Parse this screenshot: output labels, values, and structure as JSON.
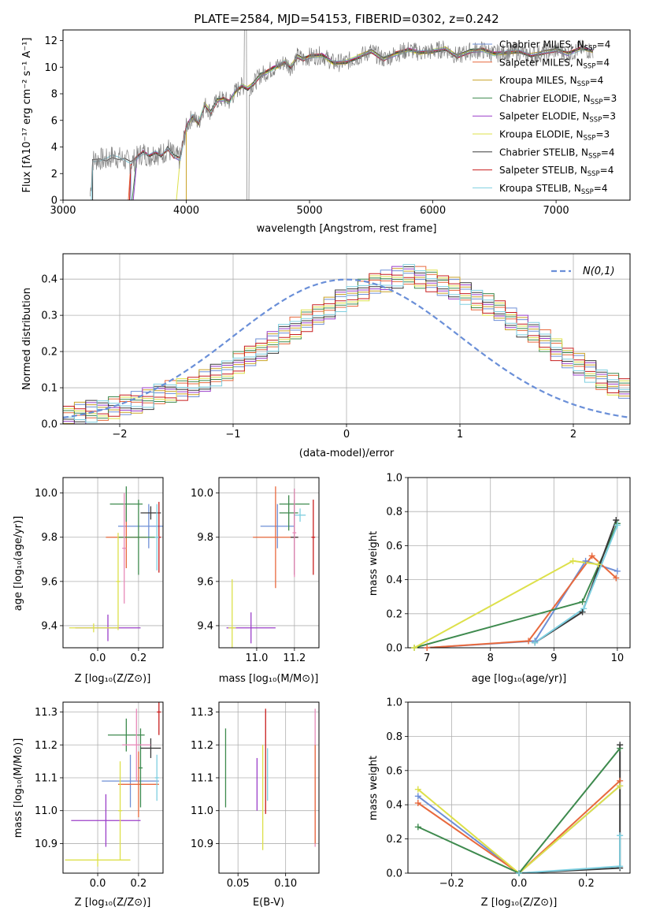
{
  "chart_data": [
    {
      "id": "spectrum",
      "type": "line",
      "title": "PLATE=2584, MJD=54153, FIBERID=0302, z=0.242",
      "xlabel": "wavelength [Angstrom, rest frame]",
      "ylabel": "Flux [fλ10⁻¹⁷ erg cm⁻² s⁻¹ A⁻¹]",
      "xlim": [
        3000,
        7600
      ],
      "ylim": [
        0,
        12.8
      ],
      "xticks": [
        "3000",
        "4000",
        "5000",
        "6000",
        "7000"
      ],
      "yticks": [
        "0",
        "2",
        "4",
        "6",
        "8",
        "10",
        "12"
      ],
      "grid": false,
      "legend_position": "top-right",
      "data_spectrum": {
        "name": "data",
        "color": "#808080",
        "x": [
          3220,
          3240,
          3300,
          3350,
          3400,
          3450,
          3500,
          3550,
          3600,
          3650,
          3700,
          3750,
          3800,
          3850,
          3900,
          3950,
          4000,
          4050,
          4100,
          4150,
          4200,
          4250,
          4300,
          4350,
          4400,
          4450,
          4500,
          4550,
          4600,
          4650,
          4700,
          4750,
          4800,
          4850,
          4900,
          4950,
          5000,
          5100,
          5200,
          5300,
          5400,
          5500,
          5600,
          5700,
          5800,
          5900,
          6000,
          6100,
          6200,
          6300,
          6400,
          6500,
          6600,
          6700,
          6800,
          6900,
          7000,
          7100,
          7200,
          7300
        ],
        "y": [
          0.3,
          3.0,
          3.1,
          3.0,
          3.3,
          3.2,
          3.0,
          2.8,
          3.2,
          3.6,
          3.3,
          3.6,
          3.4,
          3.9,
          3.3,
          3.1,
          5.5,
          6.3,
          5.8,
          7.2,
          6.6,
          7.5,
          7.6,
          7.4,
          8.2,
          8.6,
          8.4,
          8.8,
          9.4,
          9.6,
          9.9,
          10.1,
          10.4,
          10.0,
          10.8,
          10.6,
          10.8,
          10.9,
          10.3,
          10.4,
          10.8,
          11.2,
          10.6,
          11.0,
          11.3,
          11.1,
          11.2,
          11.4,
          10.8,
          11.2,
          11.3,
          11.0,
          11.1,
          11.2,
          10.9,
          11.1,
          11.3,
          11.0,
          11.4,
          11.2
        ]
      },
      "series": [
        {
          "name": "Chabrier MILES, N_SSP=4",
          "label_main": "Chabrier MILES, N",
          "label_sub": "SSP",
          "label_tail": "=4",
          "color": "#6e8fd6"
        },
        {
          "name": "Salpeter MILES, N_SSP=4",
          "label_main": "Salpeter MILES, N",
          "label_sub": "SSP",
          "label_tail": "=4",
          "color": "#e8693d"
        },
        {
          "name": "Kroupa MILES, N_SSP=4",
          "label_main": "Kroupa MILES, N",
          "label_sub": "SSP",
          "label_tail": "=4",
          "color": "#c9a227"
        },
        {
          "name": "Chabrier ELODIE, N_SSP=3",
          "label_main": "Chabrier ELODIE, N",
          "label_sub": "SSP",
          "label_tail": "=3",
          "color": "#3e8a4e"
        },
        {
          "name": "Salpeter ELODIE, N_SSP=3",
          "label_main": "Salpeter ELODIE, N",
          "label_sub": "SSP",
          "label_tail": "=3",
          "color": "#9b3fc9"
        },
        {
          "name": "Kroupa ELODIE, N_SSP=3",
          "label_main": "Kroupa ELODIE, N",
          "label_sub": "SSP",
          "label_tail": "=3",
          "color": "#dde04a"
        },
        {
          "name": "Chabrier STELIB, N_SSP=4",
          "label_main": "Chabrier STELIB, N",
          "label_sub": "SSP",
          "label_tail": "=4",
          "color": "#3a3a3a"
        },
        {
          "name": "Salpeter STELIB, N_SSP=4",
          "label_main": "Salpeter STELIB, N",
          "label_sub": "SSP",
          "label_tail": "=4",
          "color": "#c81e1e"
        },
        {
          "name": "Kroupa STELIB, N_SSP=4",
          "label_main": "Kroupa STELIB, N",
          "label_sub": "SSP",
          "label_tail": "=4",
          "color": "#7ecfe0"
        }
      ],
      "model_starts": [
        3550,
        3530,
        4000,
        3560,
        3570,
        3920,
        3240,
        3540,
        3230
      ],
      "model_ends": [
        7300,
        7300,
        7300,
        7300,
        7300,
        6770,
        7300,
        7300,
        7300
      ]
    },
    {
      "id": "residuals",
      "type": "line",
      "title": "",
      "xlabel": "(data-model)/error",
      "ylabel": "Normed distribution",
      "xlim": [
        -2.5,
        2.5
      ],
      "ylim": [
        0,
        0.47
      ],
      "xticks": [
        "−2",
        "−1",
        "0",
        "1",
        "2"
      ],
      "yticks": [
        "0.0",
        "0.1",
        "0.2",
        "0.3",
        "0.4"
      ],
      "grid": true,
      "legend_position": "top-right",
      "reference_label": "N(0,1)",
      "reference_color": "#6a8fd8",
      "bin_width": 0.1,
      "bins_start": -2.5,
      "histogram_base": [
        0.025,
        0.03,
        0.035,
        0.04,
        0.045,
        0.05,
        0.06,
        0.07,
        0.08,
        0.09,
        0.095,
        0.105,
        0.12,
        0.135,
        0.15,
        0.17,
        0.185,
        0.205,
        0.225,
        0.245,
        0.265,
        0.285,
        0.305,
        0.32,
        0.34,
        0.355,
        0.37,
        0.385,
        0.395,
        0.405,
        0.41,
        0.405,
        0.395,
        0.385,
        0.375,
        0.36,
        0.345,
        0.33,
        0.31,
        0.29,
        0.27,
        0.25,
        0.23,
        0.205,
        0.185,
        0.165,
        0.145,
        0.125,
        0.11,
        0.095
      ]
    },
    {
      "id": "age-vs-Z",
      "type": "scatter",
      "xlabel": "Z [log₁₀(Z/Z⊙)]",
      "ylabel": "age  [log₁₀(age/yr)]",
      "xlim": [
        -0.17,
        0.32
      ],
      "ylim": [
        9.3,
        10.07
      ],
      "xticks": [
        "0.0",
        "0.2"
      ],
      "yticks": [
        "9.4",
        "9.6",
        "9.8",
        "10.0"
      ],
      "grid": true,
      "points": [
        {
          "x": 0.25,
          "y": 9.85,
          "xerr": 0.15,
          "yerr": 0.1,
          "color": "#6e8fd6"
        },
        {
          "x": 0.14,
          "y": 9.8,
          "xerr": 0.1,
          "yerr": 0.14,
          "color": "#e8693d"
        },
        {
          "x": 0.14,
          "y": 9.95,
          "xerr": 0.08,
          "yerr": 0.08,
          "color": "#3e8a4e"
        },
        {
          "x": 0.2,
          "y": 9.8,
          "xerr": 0.1,
          "yerr": 0.17,
          "color": "#3e8a4e"
        },
        {
          "x": 0.05,
          "y": 9.39,
          "xerr": 0.16,
          "yerr": 0.06,
          "color": "#9b3fc9"
        },
        {
          "x": -0.02,
          "y": 9.39,
          "xerr": 0.12,
          "yerr": 0.02,
          "color": "#dde04a"
        },
        {
          "x": 0.1,
          "y": 9.6,
          "xerr": 0.01,
          "yerr": 0.22,
          "color": "#dde04a"
        },
        {
          "x": 0.26,
          "y": 9.91,
          "xerr": 0.05,
          "yerr": 0.03,
          "color": "#3a3a3a"
        },
        {
          "x": 0.3,
          "y": 9.8,
          "xerr": 0.01,
          "yerr": 0.16,
          "color": "#c81e1e"
        },
        {
          "x": 0.29,
          "y": 9.8,
          "xerr": 0.01,
          "yerr": 0.15,
          "color": "#7ecfe0"
        },
        {
          "x": 0.13,
          "y": 9.75,
          "xerr": 0.01,
          "yerr": 0.25,
          "color": "#e889b9"
        }
      ]
    },
    {
      "id": "age-vs-mass",
      "type": "scatter",
      "xlabel": "mass [log₁₀(M/M⊙)]",
      "ylabel": "",
      "xlim": [
        10.8,
        11.33
      ],
      "ylim": [
        9.3,
        10.07
      ],
      "xticks": [
        "11.0",
        "11.2"
      ],
      "yticks": [
        "9.4",
        "9.6",
        "9.8",
        "10.0"
      ],
      "grid": true,
      "points": [
        {
          "x": 11.11,
          "y": 9.85,
          "xerr": 0.09,
          "yerr": 0.1,
          "color": "#6e8fd6"
        },
        {
          "x": 11.1,
          "y": 9.8,
          "xerr": 0.12,
          "yerr": 0.23,
          "color": "#e8693d"
        },
        {
          "x": 11.2,
          "y": 9.95,
          "xerr": 0.08,
          "yerr": 0.07,
          "color": "#3e8a4e"
        },
        {
          "x": 11.17,
          "y": 9.91,
          "xerr": 0.05,
          "yerr": 0.08,
          "color": "#3e8a4e"
        },
        {
          "x": 10.97,
          "y": 9.39,
          "xerr": 0.13,
          "yerr": 0.07,
          "color": "#9b3fc9"
        },
        {
          "x": 10.87,
          "y": 9.39,
          "xerr": 0.02,
          "yerr": 0.22,
          "color": "#dde04a"
        },
        {
          "x": 11.2,
          "y": 9.8,
          "xerr": 0.02,
          "yerr": 0.17,
          "color": "#3a3a3a"
        },
        {
          "x": 11.3,
          "y": 9.8,
          "xerr": 0.01,
          "yerr": 0.17,
          "color": "#c81e1e"
        },
        {
          "x": 11.23,
          "y": 9.9,
          "xerr": 0.03,
          "yerr": 0.03,
          "color": "#7ecfe0"
        },
        {
          "x": 11.2,
          "y": 9.82,
          "xerr": 0.01,
          "yerr": 0.2,
          "color": "#e889b9"
        }
      ]
    },
    {
      "id": "weight-vs-age",
      "type": "line",
      "xlabel": "age  [log₁₀(age/yr)]",
      "ylabel": "mass weight",
      "xlim": [
        6.7,
        10.2
      ],
      "ylim": [
        0,
        1
      ],
      "xticks": [
        "7",
        "8",
        "9",
        "10"
      ],
      "yticks": [
        "0.0",
        "0.2",
        "0.4",
        "0.6",
        "0.8",
        "1.0"
      ],
      "grid": true,
      "series": [
        {
          "color": "#6e8fd6",
          "x": [
            7.0,
            8.7,
            9.5,
            10.0
          ],
          "y": [
            0.0,
            0.04,
            0.51,
            0.45
          ]
        },
        {
          "color": "#e8693d",
          "x": [
            7.0,
            8.6,
            9.6,
            9.98
          ],
          "y": [
            0.0,
            0.04,
            0.54,
            0.41
          ]
        },
        {
          "color": "#3e8a4e",
          "x": [
            6.8,
            9.45,
            10.0
          ],
          "y": [
            0.0,
            0.27,
            0.73
          ]
        },
        {
          "color": "#dde04a",
          "x": [
            6.8,
            9.3,
            9.7
          ],
          "y": [
            0.0,
            0.51,
            0.49
          ]
        },
        {
          "color": "#3a3a3a",
          "x": [
            8.7,
            9.45,
            9.98
          ],
          "y": [
            0.03,
            0.21,
            0.75
          ]
        },
        {
          "color": "#7ecfe0",
          "x": [
            8.7,
            9.47,
            10.0
          ],
          "y": [
            0.03,
            0.23,
            0.72
          ]
        }
      ]
    },
    {
      "id": "mass-vs-Z",
      "type": "scatter",
      "xlabel": "Z [log₁₀(Z/Z⊙)]",
      "ylabel": "mass [log₁₀(M/M⊙)]",
      "xlim": [
        -0.17,
        0.32
      ],
      "ylim": [
        10.81,
        11.33
      ],
      "xticks": [
        "0.0",
        "0.2"
      ],
      "yticks": [
        "10.9",
        "11.0",
        "11.1",
        "11.2",
        "11.3"
      ],
      "grid": true,
      "points": [
        {
          "x": 0.16,
          "y": 11.09,
          "xerr": 0.14,
          "yerr": 0.08,
          "color": "#6e8fd6"
        },
        {
          "x": 0.2,
          "y": 11.08,
          "xerr": 0.1,
          "yerr": 0.1,
          "color": "#e8693d"
        },
        {
          "x": 0.14,
          "y": 11.23,
          "xerr": 0.09,
          "yerr": 0.05,
          "color": "#3e8a4e"
        },
        {
          "x": 0.21,
          "y": 11.13,
          "xerr": 0.01,
          "yerr": 0.12,
          "color": "#3e8a4e"
        },
        {
          "x": 0.04,
          "y": 10.97,
          "xerr": 0.17,
          "yerr": 0.08,
          "color": "#9b3fc9"
        },
        {
          "x": 0.0,
          "y": 10.85,
          "xerr": 0.16,
          "yerr": 0.02,
          "color": "#dde04a"
        },
        {
          "x": 0.11,
          "y": 11.0,
          "xerr": 0.01,
          "yerr": 0.15,
          "color": "#dde04a"
        },
        {
          "x": 0.26,
          "y": 11.19,
          "xerr": 0.05,
          "yerr": 0.03,
          "color": "#3a3a3a"
        },
        {
          "x": 0.3,
          "y": 11.3,
          "xerr": 0.01,
          "yerr": 0.07,
          "color": "#c81e1e"
        },
        {
          "x": 0.29,
          "y": 11.1,
          "xerr": 0.01,
          "yerr": 0.07,
          "color": "#7ecfe0"
        },
        {
          "x": 0.19,
          "y": 11.2,
          "xerr": 0.07,
          "yerr": 0.11,
          "color": "#e889b9"
        }
      ]
    },
    {
      "id": "mass-vs-EBV",
      "type": "scatter",
      "xlabel": "E(B-V)",
      "ylabel": "",
      "xlim": [
        0.03,
        0.135
      ],
      "ylim": [
        10.81,
        11.33
      ],
      "xticks": [
        "0.05",
        "0.10"
      ],
      "yticks": [
        "10.9",
        "11.0",
        "11.1",
        "11.2",
        "11.3"
      ],
      "grid": true,
      "points": [
        {
          "x": 0.037,
          "y": 11.13,
          "xerr": 0.0,
          "yerr": 0.12,
          "color": "#3e8a4e"
        },
        {
          "x": 0.07,
          "y": 11.08,
          "xerr": 0.0,
          "yerr": 0.08,
          "color": "#9b3fc9"
        },
        {
          "x": 0.076,
          "y": 11.04,
          "xerr": 0.0,
          "yerr": 0.16,
          "color": "#dde04a"
        },
        {
          "x": 0.079,
          "y": 11.15,
          "xerr": 0.0,
          "yerr": 0.16,
          "color": "#c81e1e"
        },
        {
          "x": 0.081,
          "y": 11.11,
          "xerr": 0.0,
          "yerr": 0.08,
          "color": "#7ecfe0"
        },
        {
          "x": 0.131,
          "y": 11.1,
          "xerr": 0.0,
          "yerr": 0.21,
          "color": "#e889b9"
        },
        {
          "x": 0.131,
          "y": 11.05,
          "xerr": 0.0,
          "yerr": 0.15,
          "color": "#e8693d"
        }
      ]
    },
    {
      "id": "weight-vs-Z",
      "type": "line",
      "xlabel": "Z [log₁₀(Z/Z⊙)]",
      "ylabel": "mass weight",
      "xlim": [
        -0.33,
        0.33
      ],
      "ylim": [
        0,
        1
      ],
      "xticks": [
        "−0.2",
        "0.0",
        "0.2"
      ],
      "yticks": [
        "0.0",
        "0.2",
        "0.4",
        "0.6",
        "0.8",
        "1.0"
      ],
      "grid": true,
      "series": [
        {
          "color": "#6e8fd6",
          "x": [
            -0.3,
            0.0,
            0.3
          ],
          "y": [
            0.45,
            0.0,
            0.51
          ]
        },
        {
          "color": "#e8693d",
          "x": [
            -0.3,
            0.0,
            0.3
          ],
          "y": [
            0.41,
            0.0,
            0.54
          ]
        },
        {
          "color": "#dde04a",
          "x": [
            -0.3,
            0.0,
            0.3
          ],
          "y": [
            0.49,
            0.0,
            0.51
          ]
        },
        {
          "color": "#3e8a4e",
          "x": [
            -0.3,
            0.0,
            0.3
          ],
          "y": [
            0.27,
            0.0,
            0.73
          ]
        },
        {
          "color": "#3a3a3a",
          "x": [
            0.0,
            0.3,
            0.3
          ],
          "y": [
            0.0,
            0.03,
            0.75
          ]
        },
        {
          "color": "#7ecfe0",
          "x": [
            0.0,
            0.3,
            0.3
          ],
          "y": [
            0.0,
            0.04,
            0.22
          ]
        }
      ]
    }
  ]
}
